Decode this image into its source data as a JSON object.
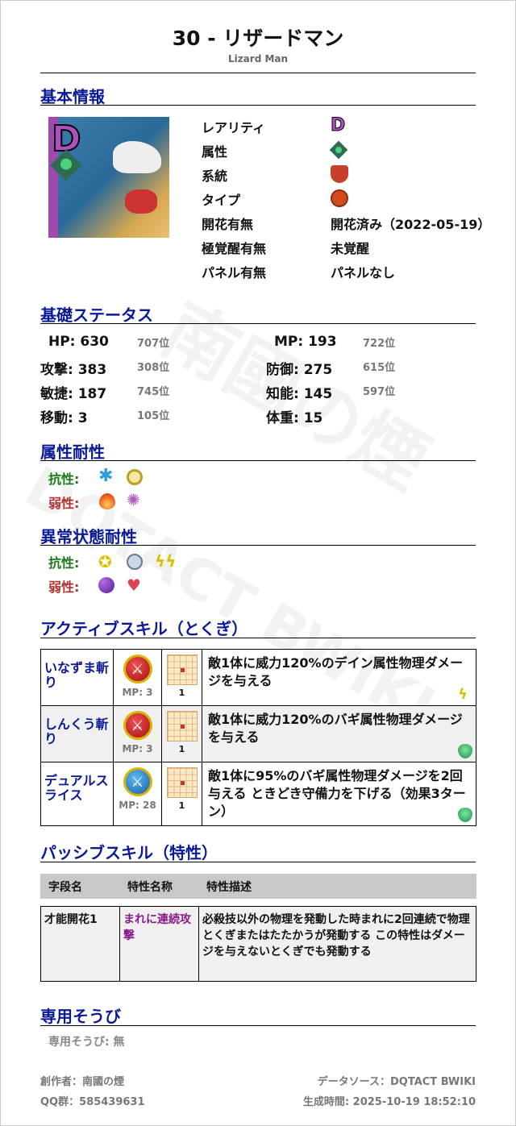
{
  "header": {
    "title": "30 - リザードマン",
    "subtitle": "Lizard Man"
  },
  "watermark": {
    "line1": "南國の煙",
    "line2": "DQTACT BWIKI"
  },
  "basic": {
    "heading": "基本情報",
    "portrait_badge": "D",
    "rows": [
      {
        "label": "レアリティ",
        "icon": "rarity-d-icon",
        "value": ""
      },
      {
        "label": "属性",
        "icon": "element-bagi-icon",
        "value": ""
      },
      {
        "label": "系統",
        "icon": "family-dragon-icon",
        "value": ""
      },
      {
        "label": "タイプ",
        "icon": "type-attack-icon",
        "value": ""
      },
      {
        "label": "開花有無",
        "value": "開花済み（2022-05-19）"
      },
      {
        "label": "極覚醒有無",
        "value": "未覚醒"
      },
      {
        "label": "パネル有無",
        "value": "パネルなし"
      }
    ],
    "rarity_letter": "D"
  },
  "stats": {
    "heading": "基礎ステータス",
    "left": [
      {
        "label": "HP: 630",
        "rank": "707位"
      },
      {
        "label": "攻撃: 383",
        "rank": "308位"
      },
      {
        "label": "敏捷: 187",
        "rank": "745位"
      },
      {
        "label": "移動: 3",
        "rank": "105位"
      }
    ],
    "right": [
      {
        "label": "MP: 193",
        "rank": "722位"
      },
      {
        "label": "防御: 275",
        "rank": "615位"
      },
      {
        "label": "知能: 145",
        "rank": "597位"
      },
      {
        "label": "体重: 15",
        "rank": ""
      }
    ]
  },
  "element_res": {
    "heading": "属性耐性",
    "resist_label": "抗性:",
    "weak_label": "弱性:",
    "resist": [
      "ice-icon",
      "light-icon"
    ],
    "weak": [
      "fire-icon",
      "explosion-icon"
    ]
  },
  "status_res": {
    "heading": "異常状態耐性",
    "resist_label": "抗性:",
    "weak_label": "弱性:",
    "resist": [
      "confusion-icon",
      "sleep-icon",
      "paralysis-icon"
    ],
    "weak": [
      "poison-icon",
      "charm-icon"
    ]
  },
  "active": {
    "heading": "アクティブスキル（とくぎ）",
    "skills": [
      {
        "name": "いなずま斬り",
        "type": "physical-attack",
        "mp": "MP: 3",
        "range": "1",
        "desc": "敵1体に威力120%のデイン属性物理ダメージを与える",
        "element": "dein"
      },
      {
        "name": "しんくう斬り",
        "type": "physical-attack",
        "mp": "MP: 3",
        "range": "1",
        "desc": "敵1体に威力120%のバギ属性物理ダメージを与える",
        "element": "bagi"
      },
      {
        "name": "デュアルスライス",
        "type": "physical-debuff",
        "mp": "MP: 28",
        "range": "1",
        "desc": "敵1体に95%のバギ属性物理ダメージを2回与える ときどき守備力を下げる（効果3ターン）",
        "element": "bagi"
      }
    ]
  },
  "passive": {
    "heading": "パッシブスキル（特性）",
    "columns": [
      "字段名",
      "特性名称",
      "特性描述"
    ],
    "rows": [
      {
        "field": "才能開花1",
        "name": "まれに連続攻撃",
        "desc": "必殺技以外の物理を発動した時まれに2回連続で物理とくぎまたはたたかうが発動する この特性はダメージを与えないとくぎでも発動する"
      }
    ]
  },
  "equipment": {
    "heading": "専用そうび",
    "text": "専用そうび: 無"
  },
  "footer": {
    "author": "創作者：南國の煙",
    "qq": "QQ群：585439631",
    "source": "データソース：DQTACT BWIKI",
    "generated": "生成時間: 2025-10-19 18:52:10"
  },
  "colors": {
    "heading": "#0a1a96",
    "resist": "#1a7a1a",
    "weak": "#b03030",
    "passive_name": "#8a1a8a"
  }
}
